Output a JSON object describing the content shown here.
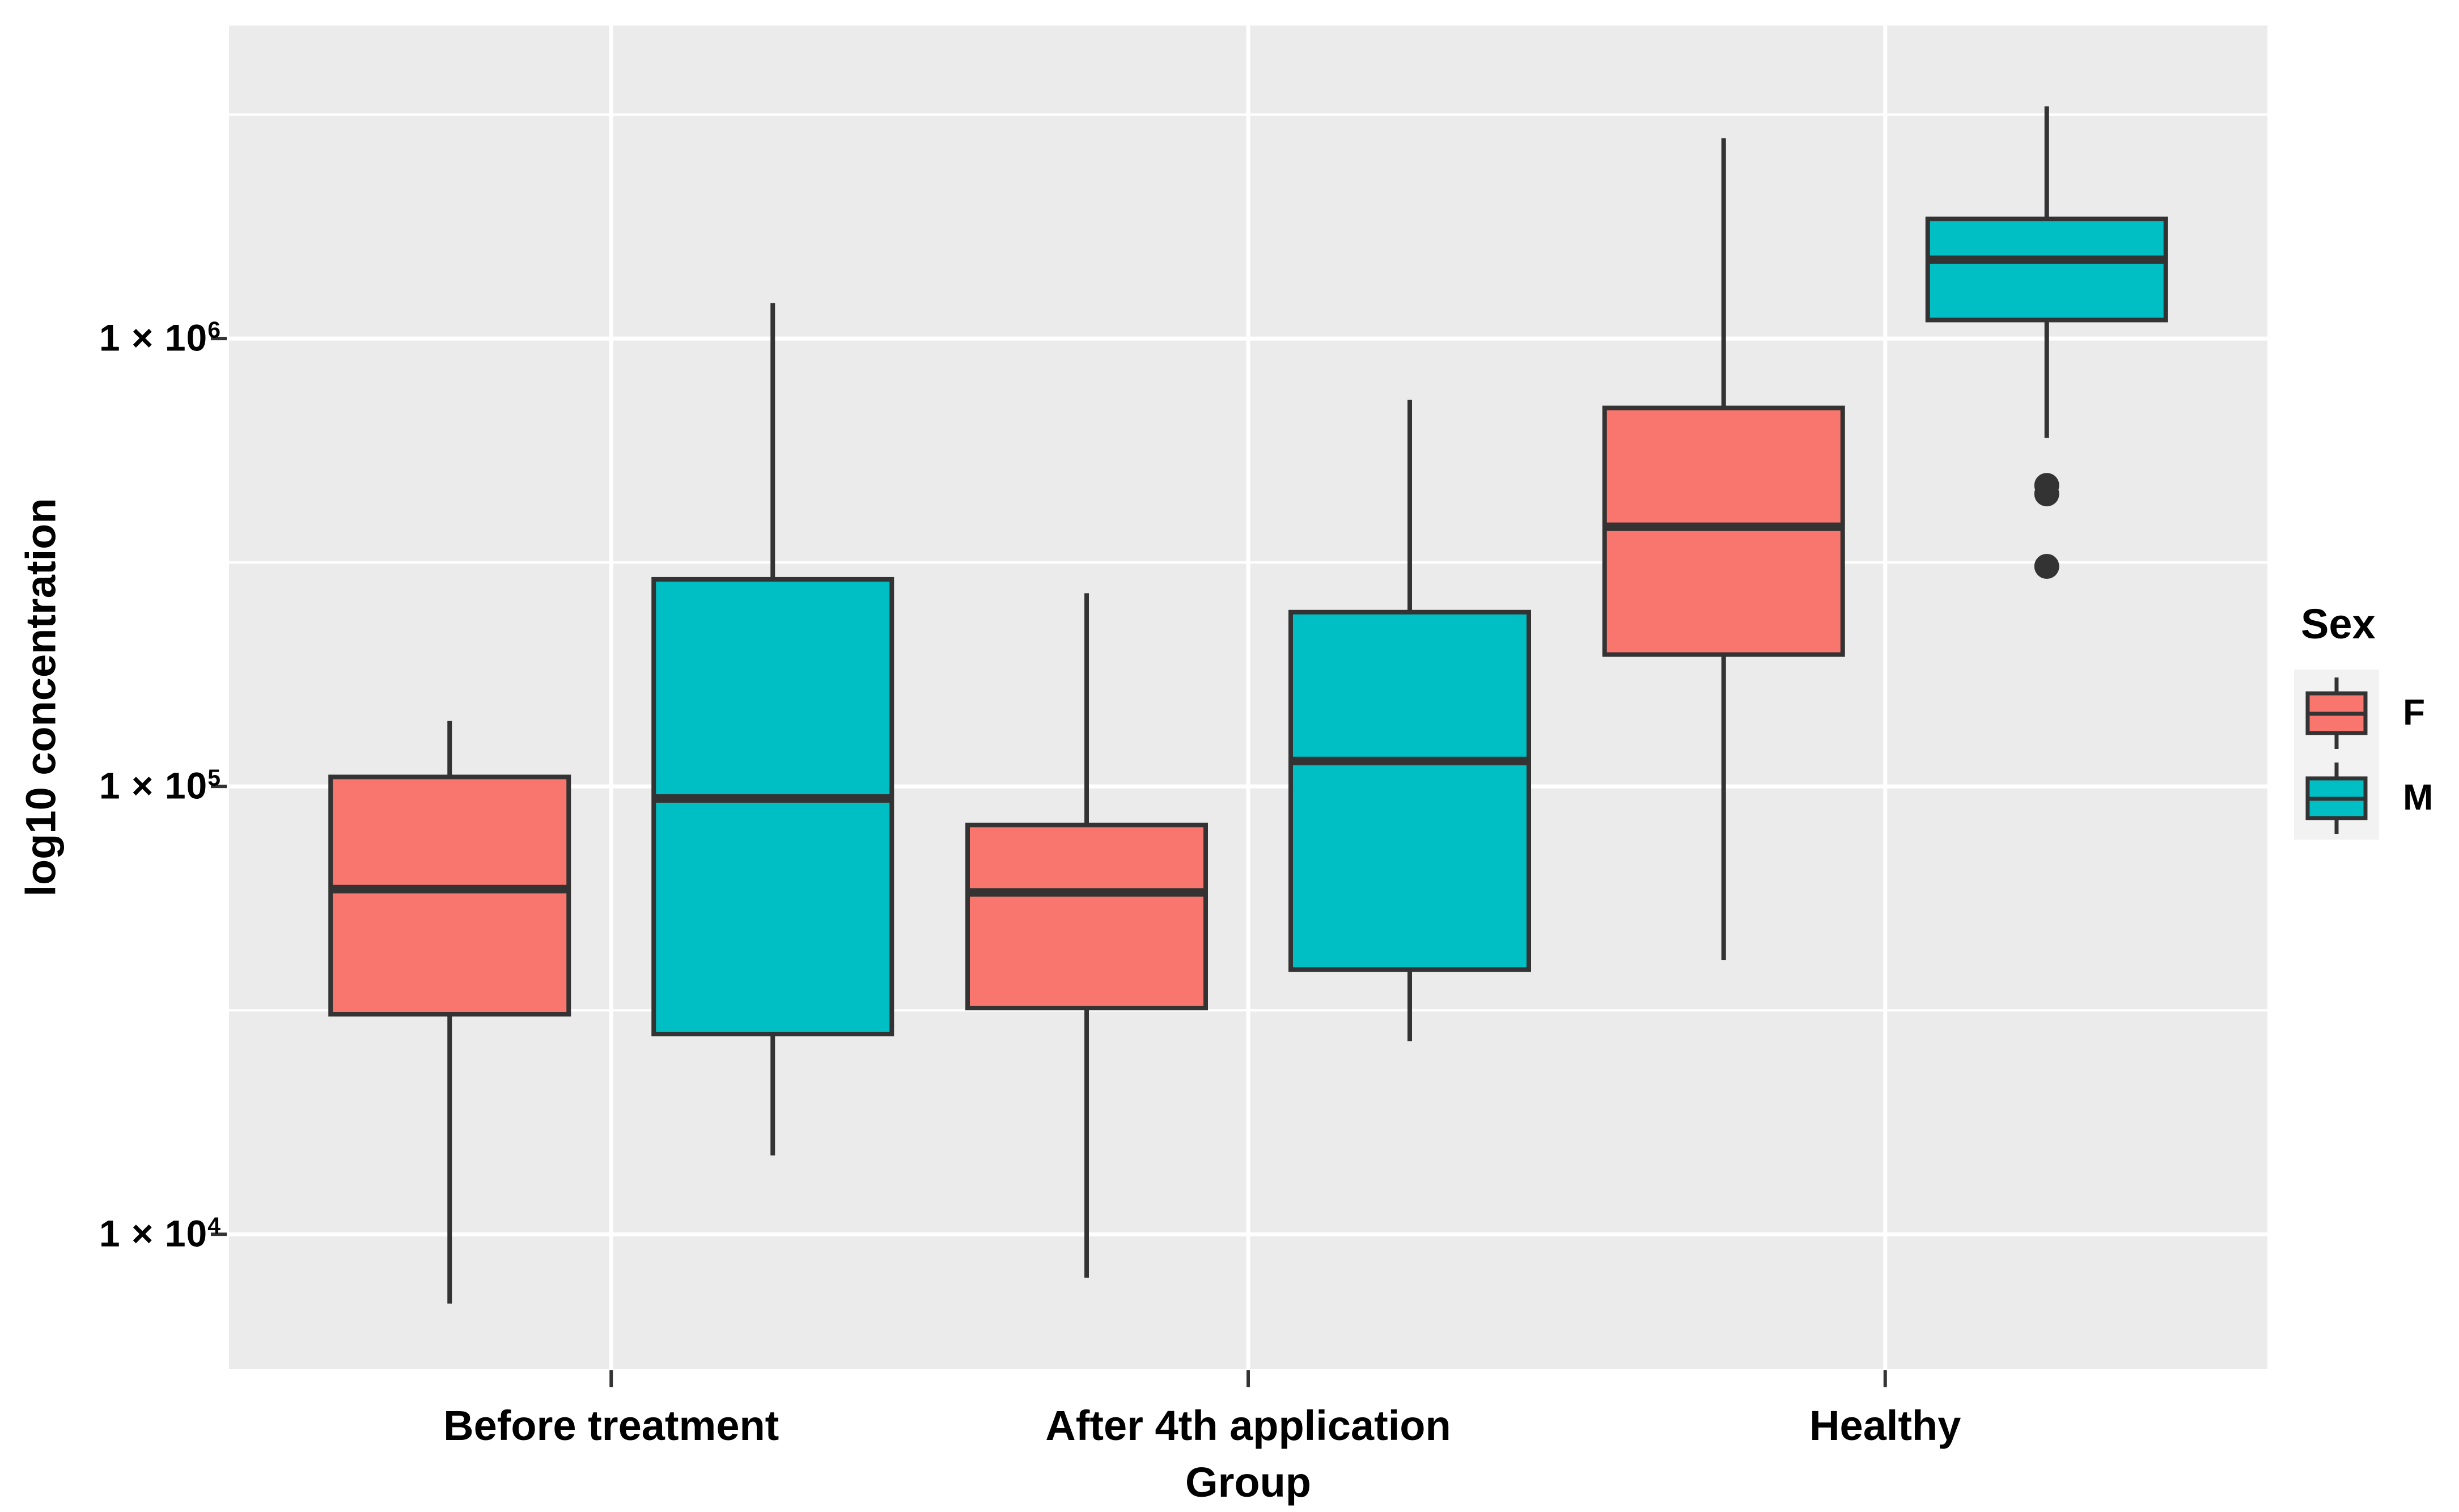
{
  "figure": {
    "background": "#FFFFFF",
    "panel_bg": "#EBEBEB",
    "grid_color": "#FFFFFF",
    "stroke_color": "#333333",
    "outlier_color": "#333333",
    "legend_key_bg": "#F2F2F2",
    "text_color": "#000000"
  },
  "chart_data": {
    "type": "boxplot",
    "subtype": "grouped-dodged-vertical",
    "title": "",
    "xlabel": "Group",
    "ylabel": "log10 concentration",
    "categories": [
      "Before treatment",
      "After 4th application",
      "Healthy"
    ],
    "y_scale": "log10",
    "ylim": [
      5000,
      5000000
    ],
    "grid": "on",
    "y_ticks": [
      {
        "base": "1 × 10",
        "exp": "6",
        "value": 1000000
      },
      {
        "base": "1 × 10",
        "exp": "5",
        "value": 100000
      },
      {
        "base": "1 × 10",
        "exp": "4",
        "value": 10000
      }
    ],
    "y_minor": [
      31623,
      316228,
      3162278
    ],
    "legend": {
      "title": "Sex",
      "position": "right",
      "entries": [
        {
          "label": "F",
          "color": "#F8766D"
        },
        {
          "label": "M",
          "color": "#00BFC4"
        }
      ]
    },
    "series": [
      {
        "name": "F",
        "color": "#F8766D",
        "boxes": [
          {
            "category": "Before treatment",
            "whisker_low": 7000,
            "q1": 31000,
            "median": 59000,
            "q3": 105000,
            "whisker_high": 140000,
            "outliers": []
          },
          {
            "category": "After 4th application",
            "whisker_low": 8000,
            "q1": 32000,
            "median": 58000,
            "q3": 82000,
            "whisker_high": 270000,
            "outliers": []
          },
          {
            "category": "Healthy",
            "whisker_low": 41000,
            "q1": 197000,
            "median": 380000,
            "q3": 700000,
            "whisker_high": 2800000,
            "outliers": []
          }
        ]
      },
      {
        "name": "M",
        "color": "#00BFC4",
        "boxes": [
          {
            "category": "Before treatment",
            "whisker_low": 15000,
            "q1": 28000,
            "median": 94000,
            "q3": 290000,
            "whisker_high": 1200000,
            "outliers": []
          },
          {
            "category": "After 4th application",
            "whisker_low": 27000,
            "q1": 39000,
            "median": 114000,
            "q3": 245000,
            "whisker_high": 730000,
            "outliers": []
          },
          {
            "category": "Healthy",
            "whisker_low": 600000,
            "q1": 1100000,
            "median": 1500000,
            "q3": 1850000,
            "whisker_high": 3300000,
            "outliers": [
              470000,
              450000,
              310000
            ]
          }
        ]
      }
    ]
  }
}
